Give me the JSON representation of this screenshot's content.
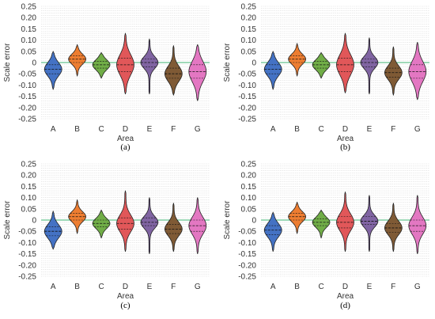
{
  "chart_data": [
    {
      "type": "violin",
      "caption": "(a)",
      "categories": [
        "A",
        "B",
        "C",
        "D",
        "E",
        "F",
        "G"
      ],
      "colors": [
        "#4472c4",
        "#ed7d31",
        "#70ad47",
        "#e15759",
        "#8064a2",
        "#7f5a35",
        "#e377c2"
      ],
      "xlabel": "Area",
      "ylabel": "Scale error",
      "ylim": [
        -0.25,
        0.25
      ],
      "yticks": [
        "0.25",
        "0.20",
        "0.15",
        "0.10",
        "0.05",
        "0",
        "-0.05",
        "-0.10",
        "-0.15",
        "-0.20",
        "-0.25"
      ],
      "grid": true,
      "zero_line": true,
      "series": [
        {
          "category": "A",
          "min": -0.12,
          "max": 0.05,
          "q1": -0.05,
          "median": -0.03,
          "q3": -0.01,
          "peak": -0.03
        },
        {
          "category": "B",
          "min": -0.06,
          "max": 0.08,
          "q1": 0.0,
          "median": 0.015,
          "q3": 0.03,
          "peak": 0.015
        },
        {
          "category": "C",
          "min": -0.07,
          "max": 0.045,
          "q1": -0.025,
          "median": -0.01,
          "q3": 0.005,
          "peak": -0.01
        },
        {
          "category": "D",
          "min": -0.14,
          "max": 0.13,
          "q1": -0.04,
          "median": -0.01,
          "q3": 0.02,
          "peak": -0.01
        },
        {
          "category": "E",
          "min": -0.14,
          "max": 0.105,
          "q1": -0.02,
          "median": 0.0,
          "q3": 0.015,
          "peak": 0.0
        },
        {
          "category": "F",
          "min": -0.145,
          "max": 0.075,
          "q1": -0.07,
          "median": -0.05,
          "q3": -0.025,
          "peak": -0.05
        },
        {
          "category": "G",
          "min": -0.17,
          "max": 0.08,
          "q1": -0.07,
          "median": -0.04,
          "q3": -0.01,
          "peak": -0.04
        }
      ]
    },
    {
      "type": "violin",
      "caption": "(b)",
      "categories": [
        "A",
        "B",
        "C",
        "D",
        "E",
        "F",
        "G"
      ],
      "colors": [
        "#4472c4",
        "#ed7d31",
        "#70ad47",
        "#e15759",
        "#8064a2",
        "#7f5a35",
        "#e377c2"
      ],
      "xlabel": "Area",
      "ylabel": "Scale error",
      "ylim": [
        -0.25,
        0.25
      ],
      "yticks": [
        "0.25",
        "0.20",
        "0.15",
        "0.10",
        "0.05",
        "0",
        "-0.05",
        "-0.10",
        "-0.15",
        "-0.20",
        "-0.25"
      ],
      "grid": true,
      "zero_line": true,
      "series": [
        {
          "category": "A",
          "min": -0.12,
          "max": 0.05,
          "q1": -0.05,
          "median": -0.03,
          "q3": -0.01,
          "peak": -0.03
        },
        {
          "category": "B",
          "min": -0.06,
          "max": 0.085,
          "q1": 0.0,
          "median": 0.015,
          "q3": 0.03,
          "peak": 0.015
        },
        {
          "category": "C",
          "min": -0.07,
          "max": 0.045,
          "q1": -0.025,
          "median": -0.01,
          "q3": 0.005,
          "peak": -0.01
        },
        {
          "category": "D",
          "min": -0.135,
          "max": 0.13,
          "q1": -0.04,
          "median": -0.01,
          "q3": 0.02,
          "peak": -0.01
        },
        {
          "category": "E",
          "min": -0.14,
          "max": 0.11,
          "q1": -0.02,
          "median": 0.0,
          "q3": 0.015,
          "peak": 0.0
        },
        {
          "category": "F",
          "min": -0.145,
          "max": 0.07,
          "q1": -0.065,
          "median": -0.045,
          "q3": -0.025,
          "peak": -0.045
        },
        {
          "category": "G",
          "min": -0.165,
          "max": 0.09,
          "q1": -0.07,
          "median": -0.04,
          "q3": -0.01,
          "peak": -0.04
        }
      ]
    },
    {
      "type": "violin",
      "caption": "(c)",
      "categories": [
        "A",
        "B",
        "C",
        "D",
        "E",
        "F",
        "G"
      ],
      "colors": [
        "#4472c4",
        "#ed7d31",
        "#70ad47",
        "#e15759",
        "#8064a2",
        "#7f5a35",
        "#e377c2"
      ],
      "xlabel": "Area",
      "ylabel": "Scale error",
      "ylim": [
        -0.25,
        0.25
      ],
      "yticks": [
        "0.25",
        "0.20",
        "0.15",
        "0.10",
        "0.05",
        "0",
        "-0.05",
        "-0.10",
        "-0.15",
        "-0.20",
        "-0.25"
      ],
      "grid": true,
      "zero_line": true,
      "series": [
        {
          "category": "A",
          "min": -0.13,
          "max": 0.04,
          "q1": -0.07,
          "median": -0.05,
          "q3": -0.03,
          "peak": -0.05
        },
        {
          "category": "B",
          "min": -0.06,
          "max": 0.09,
          "q1": 0.0,
          "median": 0.015,
          "q3": 0.03,
          "peak": 0.015
        },
        {
          "category": "C",
          "min": -0.08,
          "max": 0.045,
          "q1": -0.03,
          "median": -0.015,
          "q3": 0.0,
          "peak": -0.015
        },
        {
          "category": "D",
          "min": -0.14,
          "max": 0.13,
          "q1": -0.04,
          "median": -0.015,
          "q3": 0.01,
          "peak": -0.015
        },
        {
          "category": "E",
          "min": -0.15,
          "max": 0.1,
          "q1": -0.025,
          "median": -0.01,
          "q3": 0.01,
          "peak": -0.01
        },
        {
          "category": "F",
          "min": -0.14,
          "max": 0.075,
          "q1": -0.06,
          "median": -0.04,
          "q3": -0.02,
          "peak": -0.04
        },
        {
          "category": "G",
          "min": -0.15,
          "max": 0.1,
          "q1": -0.05,
          "median": -0.025,
          "q3": 0.0,
          "peak": -0.025
        }
      ]
    },
    {
      "type": "violin",
      "caption": "(d)",
      "categories": [
        "A",
        "B",
        "C",
        "D",
        "E",
        "F",
        "G"
      ],
      "colors": [
        "#4472c4",
        "#ed7d31",
        "#70ad47",
        "#e15759",
        "#8064a2",
        "#7f5a35",
        "#e377c2"
      ],
      "xlabel": "Area",
      "ylabel": "Scale error",
      "ylim": [
        -0.25,
        0.25
      ],
      "yticks": [
        "0.25",
        "0.20",
        "0.15",
        "0.10",
        "0.05",
        "0",
        "-0.05",
        "-0.10",
        "-0.15",
        "-0.20",
        "-0.25"
      ],
      "grid": true,
      "zero_line": true,
      "series": [
        {
          "category": "A",
          "min": -0.14,
          "max": 0.035,
          "q1": -0.065,
          "median": -0.045,
          "q3": -0.025,
          "peak": -0.045
        },
        {
          "category": "B",
          "min": -0.06,
          "max": 0.08,
          "q1": 0.0,
          "median": 0.015,
          "q3": 0.03,
          "peak": 0.015
        },
        {
          "category": "C",
          "min": -0.08,
          "max": 0.045,
          "q1": -0.025,
          "median": -0.01,
          "q3": 0.005,
          "peak": -0.01
        },
        {
          "category": "D",
          "min": -0.14,
          "max": 0.125,
          "q1": -0.035,
          "median": -0.01,
          "q3": 0.015,
          "peak": -0.01
        },
        {
          "category": "E",
          "min": -0.14,
          "max": 0.11,
          "q1": -0.02,
          "median": -0.005,
          "q3": 0.015,
          "peak": -0.005
        },
        {
          "category": "F",
          "min": -0.14,
          "max": 0.075,
          "q1": -0.055,
          "median": -0.035,
          "q3": -0.015,
          "peak": -0.035
        },
        {
          "category": "G",
          "min": -0.15,
          "max": 0.11,
          "q1": -0.05,
          "median": -0.025,
          "q3": 0.0,
          "peak": -0.025
        }
      ]
    }
  ]
}
